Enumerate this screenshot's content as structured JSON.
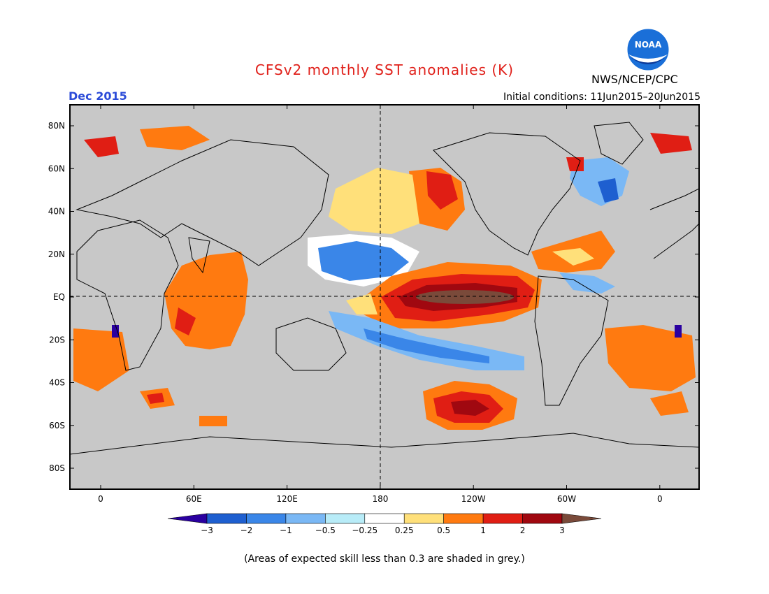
{
  "title": "CFSv2 monthly SST anomalies (K)",
  "agency": "NWS/NCEP/CPC",
  "logo_text": "NOAA",
  "month": "Dec 2015",
  "initial_conditions": "Initial conditions: 11Jun2015–20Jun2015",
  "footnote": "(Areas of expected skill less than 0.3 are shaded in grey.)",
  "map": {
    "lat_labels": [
      "80N",
      "60N",
      "40N",
      "20N",
      "EQ",
      "20S",
      "40S",
      "60S",
      "80S"
    ],
    "lon_labels": [
      "0",
      "60E",
      "120E",
      "180",
      "120W",
      "60W",
      "0"
    ],
    "reference_lines": [
      "equator",
      "dateline"
    ]
  },
  "colorbar": {
    "labels": [
      "−3",
      "−2",
      "−1",
      "−0.5",
      "−0.25",
      "0.25",
      "0.5",
      "1",
      "2",
      "3"
    ],
    "colors": [
      "#2a00a0",
      "#1e5fd0",
      "#3a86e8",
      "#7ab8f5",
      "#b8ecf8",
      "#ffffff",
      "#ffe07a",
      "#ff7a10",
      "#e01e14",
      "#a00810",
      "#7a4a3a"
    ]
  },
  "colors": {
    "land": "#c8c8c8",
    "title": "#e0201a",
    "month": "#2b4bd8"
  }
}
